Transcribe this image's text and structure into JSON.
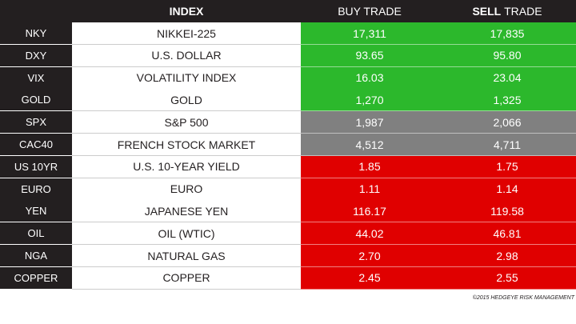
{
  "header": {
    "index": "INDEX",
    "buy": "BUY TRADE",
    "sell_bold": "SELL",
    "sell_rest": "TRADE"
  },
  "table": {
    "rows": [
      {
        "cells": [
          "NKY",
          "NIKKEI-225",
          "17,311",
          "17,835"
        ],
        "color": "#2cb82c"
      },
      {
        "cells": [
          "DXY",
          "U.S. DOLLAR",
          "93.65",
          "95.80"
        ],
        "color": "#2cb82c"
      },
      {
        "cells": [
          "VIX",
          "VOLATILITY INDEX",
          "16.03",
          "23.04"
        ],
        "color": "#2cb82c"
      },
      {
        "cells": [
          "GOLD",
          "GOLD",
          "1,270",
          "1,325"
        ],
        "color": "#2cb82c"
      },
      {
        "cells": [
          "SPX",
          "S&P 500",
          "1,987",
          "2,066"
        ],
        "color": "#808080"
      },
      {
        "cells": [
          "CAC40",
          "FRENCH STOCK MARKET",
          "4,512",
          "4,711"
        ],
        "color": "#808080"
      },
      {
        "cells": [
          "US 10YR",
          "U.S. 10-YEAR YIELD",
          "1.85",
          "1.75"
        ],
        "color": "#e00000"
      },
      {
        "cells": [
          "EURO",
          "EURO",
          "1.11",
          "1.14"
        ],
        "color": "#e00000"
      },
      {
        "cells": [
          "YEN",
          "JAPANESE YEN",
          "116.17",
          "119.58"
        ],
        "color": "#e00000"
      },
      {
        "cells": [
          "OIL",
          "OIL (WTIC)",
          "44.02",
          "46.81"
        ],
        "color": "#e00000"
      },
      {
        "cells": [
          "NGA",
          "NATURAL GAS",
          "2.70",
          "2.98"
        ],
        "color": "#e00000"
      },
      {
        "cells": [
          "COPPER",
          "COPPER",
          "2.45",
          "2.55"
        ],
        "color": "#e00000"
      }
    ]
  },
  "footer": "©2015 HEDGEYE RISK MANAGEMENT"
}
